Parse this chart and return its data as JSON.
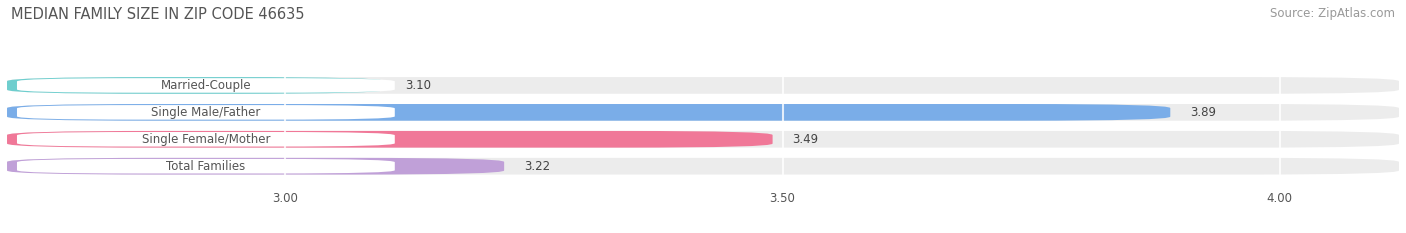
{
  "title": "MEDIAN FAMILY SIZE IN ZIP CODE 46635",
  "source": "Source: ZipAtlas.com",
  "categories": [
    "Married-Couple",
    "Single Male/Father",
    "Single Female/Mother",
    "Total Families"
  ],
  "values": [
    3.1,
    3.89,
    3.49,
    3.22
  ],
  "colors": [
    "#6ecece",
    "#7aade8",
    "#f07898",
    "#c0a0d8"
  ],
  "xlim_min": 2.72,
  "xlim_max": 4.12,
  "xticks": [
    3.0,
    3.5,
    4.0
  ],
  "bar_height": 0.62,
  "label_fontsize": 8.5,
  "title_fontsize": 10.5,
  "source_fontsize": 8.5,
  "value_fontsize": 8.5,
  "background_color": "#ffffff",
  "bar_bg_color": "#ececec",
  "label_box_color": "#ffffff",
  "grid_color": "#cccccc",
  "text_color": "#555555",
  "value_color": "#444444",
  "title_color": "#555555",
  "source_color": "#999999"
}
